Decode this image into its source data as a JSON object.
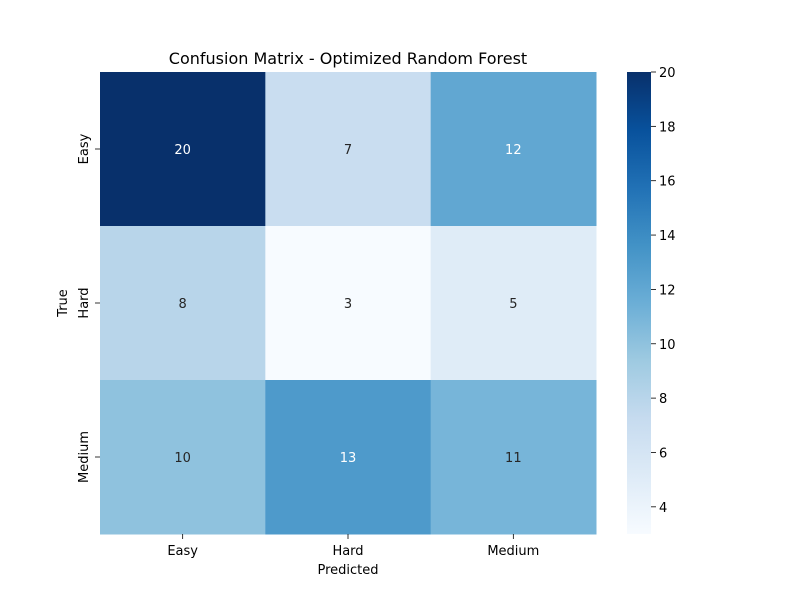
{
  "chart_data": {
    "type": "heatmap",
    "title": "Confusion Matrix - Optimized Random Forest",
    "xlabel": "Predicted",
    "ylabel": "True",
    "x_categories": [
      "Easy",
      "Hard",
      "Medium"
    ],
    "y_categories": [
      "Easy",
      "Hard",
      "Medium"
    ],
    "values": [
      [
        20,
        7,
        12
      ],
      [
        8,
        3,
        5
      ],
      [
        10,
        13,
        11
      ]
    ],
    "colormap": "Blues",
    "color_range": [
      3,
      20
    ],
    "colorbar_ticks": [
      4,
      6,
      8,
      10,
      12,
      14,
      16,
      18,
      20
    ],
    "colors": {
      "annotation_dark": "#262626",
      "annotation_light": "#ffffff",
      "axis": "#000000"
    }
  }
}
